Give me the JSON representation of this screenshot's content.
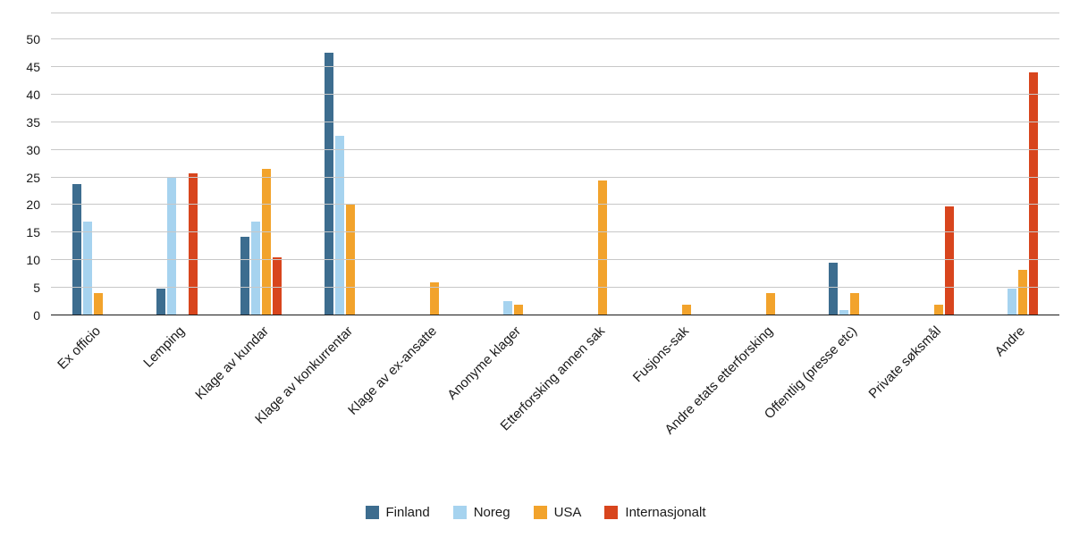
{
  "chart_data": {
    "type": "bar",
    "title": "",
    "xlabel": "",
    "ylabel": "",
    "ylim": [
      0,
      50
    ],
    "ytick_step": 5,
    "grid": true,
    "grid_color": "#c8c8c8",
    "axis_color": "#1a1a1a",
    "legend_position": "bottom",
    "categories": [
      "Ex officio",
      "Lemping",
      "Klage av kundar",
      "Klage av konkurrentar",
      "Klage av ex-ansatte",
      "Anonyme klager",
      "Etterforsking annen sak",
      "Fusjons-sak",
      "Andre etats etterforsking",
      "Offentlig (presse etc)",
      "Private søksmål",
      "Andre"
    ],
    "series": [
      {
        "name": "Finland",
        "color": "#3d6d8f",
        "values": [
          23.8,
          4.9,
          14.3,
          47.6,
          0,
          0,
          0,
          0,
          0,
          9.5,
          0,
          0
        ]
      },
      {
        "name": "Noreg",
        "color": "#a6d3ef",
        "values": [
          17,
          25,
          17,
          32.5,
          0,
          2.6,
          0,
          0,
          0,
          1,
          0,
          4.9
        ]
      },
      {
        "name": "USA",
        "color": "#f2a32c",
        "values": [
          4,
          0,
          26.5,
          20.3,
          6,
          2,
          24.5,
          2,
          4,
          4,
          2,
          8.2
        ]
      },
      {
        "name": "Internasjonalt",
        "color": "#d8451d",
        "values": [
          0,
          25.7,
          10.5,
          0,
          0,
          0,
          0,
          0,
          0,
          0,
          19.7,
          44
        ]
      }
    ]
  }
}
